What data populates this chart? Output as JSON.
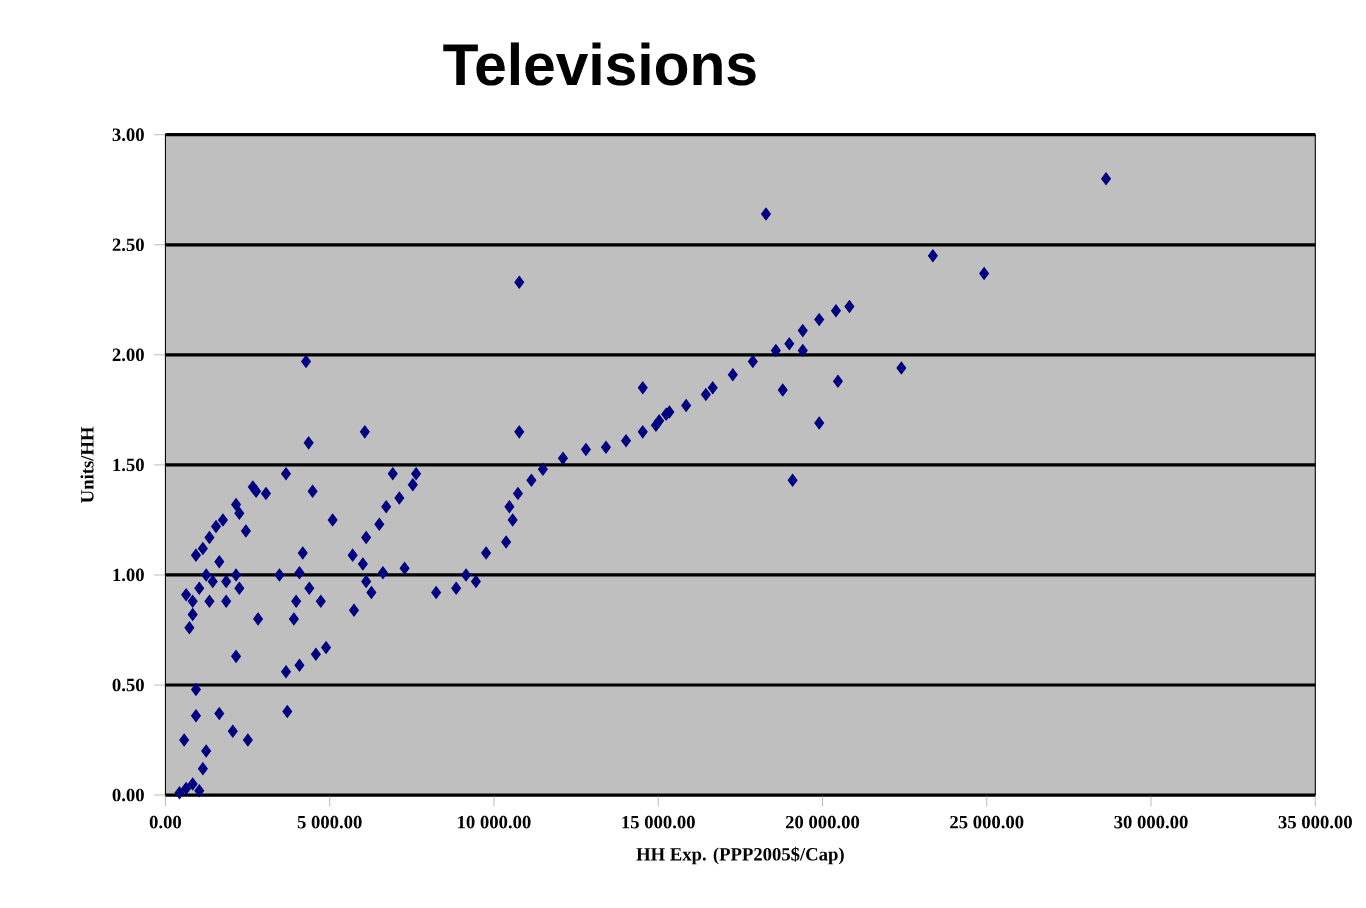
{
  "chart_data": {
    "type": "scatter",
    "title": "Televisions",
    "xlabel": "HH Exp. (PPP2005$/Cap)",
    "ylabel": "Units/HH",
    "color": "#000080",
    "marker": "diamond",
    "grid": "y",
    "xlim": [
      0,
      35000
    ],
    "ylim": [
      0,
      3
    ],
    "xticks": [
      {
        "value": 0,
        "label": "0.00"
      },
      {
        "value": 5000,
        "label": "5 000.00"
      },
      {
        "value": 10000,
        "label": "10 000.00"
      },
      {
        "value": 15000,
        "label": "15 000.00"
      },
      {
        "value": 20000,
        "label": "20 000.00"
      },
      {
        "value": 25000,
        "label": "25 000.00"
      },
      {
        "value": 30000,
        "label": "30 000.00"
      },
      {
        "value": 35000,
        "label": "35 000.00"
      }
    ],
    "yticks": [
      {
        "value": 0,
        "label": "0.00"
      },
      {
        "value": 0.5,
        "label": "0.50"
      },
      {
        "value": 1,
        "label": "1.00"
      },
      {
        "value": 1.5,
        "label": "1.50"
      },
      {
        "value": 2,
        "label": "2.00"
      },
      {
        "value": 2.5,
        "label": "2.50"
      },
      {
        "value": 3,
        "label": "3.00"
      }
    ],
    "x": [
      10770,
      4280,
      4360,
      6070,
      10770,
      3670,
      4480,
      5090,
      6920,
      7630,
      7530,
      7120,
      6720,
      6510,
      6110,
      5700,
      6010,
      6110,
      6270,
      6620,
      7280,
      5740,
      8240,
      8850,
      9150,
      9450,
      9760,
      10370,
      10570,
      10470,
      10730,
      11140,
      11490,
      12100,
      12800,
      13410,
      14020,
      14530,
      14530,
      15030,
      15340,
      15850,
      16450,
      17270,
      17880,
      630,
      830,
      1030,
      430,
      1240,
      930,
      930,
      570,
      1640,
      1140,
      2050,
      2510,
      2150,
      2820,
      3710,
      3670,
      4080,
      4580,
      4890,
      3910,
      3980,
      4730,
      3470,
      4180,
      4080,
      4380,
      730,
      830,
      630,
      1030,
      1240,
      1440,
      930,
      1140,
      1640,
      1850,
      2150,
      2250,
      1540,
      1750,
      1340,
      2150,
      2250,
      2450,
      2760,
      3060,
      2660,
      1340,
      1850,
      830,
      28630,
      18280,
      23360,
      24920,
      20820,
      20410,
      19900,
      19400,
      18990,
      18580,
      19400,
      18790,
      20470,
      22400,
      19900,
      19090,
      16660,
      15240,
      14930
    ],
    "values": [
      2.33,
      1.97,
      1.6,
      1.65,
      1.65,
      1.46,
      1.38,
      1.25,
      1.46,
      1.46,
      1.41,
      1.35,
      1.31,
      1.23,
      1.17,
      1.09,
      1.05,
      0.97,
      0.92,
      1.01,
      1.03,
      0.84,
      0.92,
      0.94,
      1.0,
      0.97,
      1.1,
      1.15,
      1.25,
      1.31,
      1.37,
      1.43,
      1.48,
      1.53,
      1.57,
      1.58,
      1.61,
      1.65,
      1.85,
      1.7,
      1.74,
      1.77,
      1.82,
      1.91,
      1.97,
      0.03,
      0.05,
      0.02,
      0.01,
      0.2,
      0.36,
      0.48,
      0.25,
      0.37,
      0.12,
      0.29,
      0.25,
      0.63,
      0.8,
      0.38,
      0.56,
      0.59,
      0.64,
      0.67,
      0.8,
      0.88,
      0.88,
      1.0,
      1.1,
      1.01,
      0.94,
      0.76,
      0.82,
      0.91,
      0.94,
      1.0,
      0.97,
      1.09,
      1.12,
      1.06,
      0.97,
      1.0,
      0.94,
      1.22,
      1.25,
      1.17,
      1.32,
      1.28,
      1.2,
      1.38,
      1.37,
      1.4,
      0.88,
      0.88,
      0.88,
      2.8,
      2.64,
      2.45,
      2.37,
      2.22,
      2.2,
      2.16,
      2.11,
      2.05,
      2.02,
      2.02,
      1.84,
      1.88,
      1.94,
      1.69,
      1.43,
      1.85,
      1.73,
      1.68
    ]
  }
}
